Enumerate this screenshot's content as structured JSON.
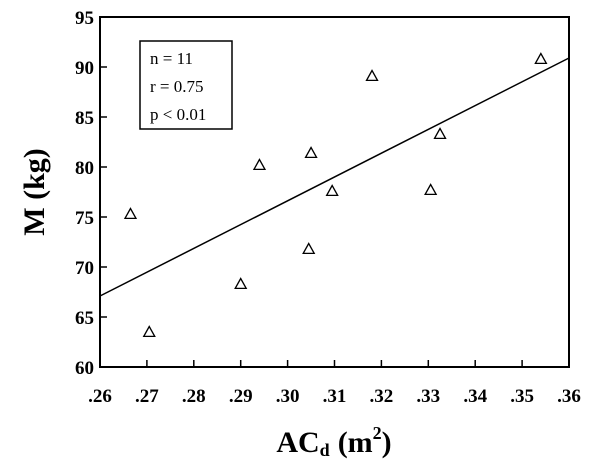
{
  "chart_data": {
    "type": "scatter",
    "title": "",
    "xlabel": "AC",
    "xlabel_subscript": "d",
    "xlabel_unit_prefix": "(m",
    "xlabel_unit_power": "2",
    "xlabel_unit_suffix": ")",
    "ylabel": "M (kg)",
    "xlim": [
      0.26,
      0.36
    ],
    "ylim": [
      60,
      95
    ],
    "x_ticks": [
      0.26,
      0.27,
      0.28,
      0.29,
      0.3,
      0.31,
      0.32,
      0.33,
      0.34,
      0.35,
      0.36
    ],
    "x_tick_labels": [
      ".26",
      ".27",
      ".28",
      ".29",
      ".30",
      ".31",
      ".32",
      ".33",
      ".34",
      ".35",
      ".36"
    ],
    "y_ticks": [
      60,
      65,
      70,
      75,
      80,
      85,
      90,
      95
    ],
    "y_tick_labels": [
      "60",
      "65",
      "70",
      "75",
      "80",
      "85",
      "90",
      "95"
    ],
    "marker": "open-triangle",
    "grid": false,
    "points": [
      {
        "x": 0.2665,
        "y": 75.3
      },
      {
        "x": 0.2705,
        "y": 63.5
      },
      {
        "x": 0.29,
        "y": 68.3
      },
      {
        "x": 0.294,
        "y": 80.2
      },
      {
        "x": 0.3045,
        "y": 71.8
      },
      {
        "x": 0.305,
        "y": 81.4
      },
      {
        "x": 0.3095,
        "y": 77.6
      },
      {
        "x": 0.318,
        "y": 89.1
      },
      {
        "x": 0.3305,
        "y": 77.7
      },
      {
        "x": 0.3325,
        "y": 83.3
      },
      {
        "x": 0.354,
        "y": 90.8
      }
    ],
    "regression_line": {
      "x": [
        0.26,
        0.36
      ],
      "y": [
        67.1,
        90.9
      ]
    },
    "stats": [
      "n = 11",
      "r = 0.75",
      "p < 0.01"
    ]
  }
}
